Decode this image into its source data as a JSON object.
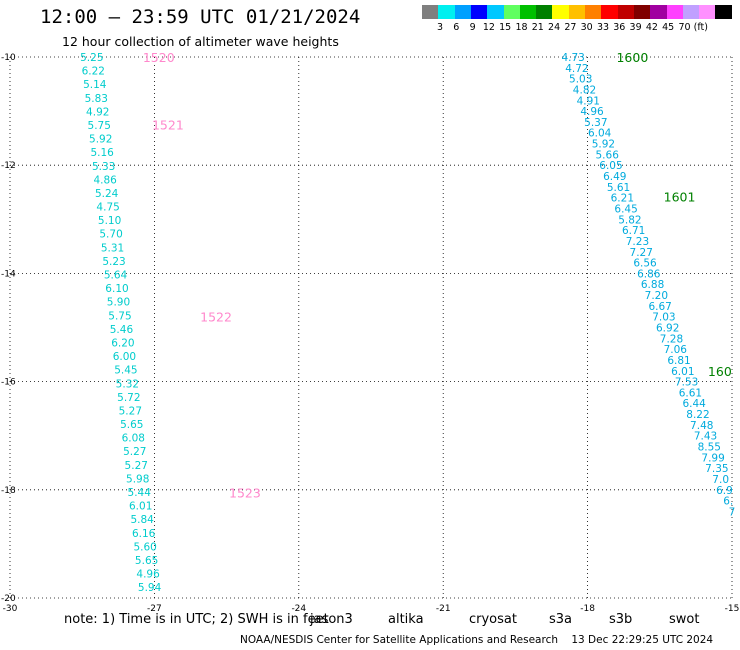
{
  "header": {
    "title": "12:00 – 23:59 UTC 01/21/2024",
    "subtitle": "12 hour collection of altimeter wave heights"
  },
  "legend": {
    "unit": "(ft)",
    "colors": [
      "#7f7f7f",
      "#00f0f0",
      "#00a0ff",
      "#0000ff",
      "#00c8ff",
      "#60ff60",
      "#00c000",
      "#008000",
      "#ffff00",
      "#ffc000",
      "#ff8000",
      "#ff0000",
      "#c00000",
      "#800000",
      "#a000a0",
      "#ff40ff",
      "#c0a0ff",
      "#ff90ff",
      "#000000"
    ],
    "labels": [
      "3",
      "6",
      "9",
      "12",
      "15",
      "18",
      "21",
      "24",
      "27",
      "30",
      "33",
      "36",
      "39",
      "42",
      "45",
      "70"
    ]
  },
  "axes": {
    "x_ticks": [
      "-30",
      "-27",
      "-24",
      "-21",
      "-18",
      "-15"
    ],
    "y_ticks": [
      "-10",
      "-12",
      "-14",
      "-16",
      "-18",
      "-20"
    ]
  },
  "track_left": {
    "color": "#00cccc",
    "lon_start": -28.3,
    "lat_start": -10.0,
    "lon_end": -27.1,
    "lat_end": -19.8,
    "values": [
      "5.25",
      "6.22",
      "5.14",
      "5.83",
      "4.92",
      "5.75",
      "5.92",
      "5.16",
      "5.33",
      "4.86",
      "5.24",
      "4.75",
      "5.10",
      "5.70",
      "5.31",
      "5.23",
      "5.64",
      "6.10",
      "5.90",
      "5.75",
      "5.46",
      "6.20",
      "6.00",
      "5.45",
      "5.32",
      "5.72",
      "5.27",
      "5.65",
      "6.08",
      "5.27",
      "5.27",
      "5.98",
      "5.44",
      "6.01",
      "5.84",
      "6.16",
      "5.60",
      "5.65",
      "4.96",
      "5.94"
    ]
  },
  "track_right": {
    "color": "#00aadd",
    "lon_start": -18.3,
    "lat_start": -10.0,
    "lon_end": -15.0,
    "lat_end": -18.4,
    "values": [
      "4.73",
      "4.72",
      "5.03",
      "4.82",
      "4.91",
      "4.96",
      "5.37",
      "6.04",
      "5.92",
      "5.66",
      "6.05",
      "6.49",
      "5.61",
      "6.21",
      "6.45",
      "5.82",
      "6.71",
      "7.23",
      "7.27",
      "6.56",
      "6.86",
      "6.88",
      "7.20",
      "6.67",
      "7.03",
      "6.92",
      "7.28",
      "7.06",
      "6.81",
      "6.01",
      "7.53",
      "6.61",
      "6.44",
      "8.22",
      "7.48",
      "7.43",
      "8.55",
      "7.99",
      "7.35",
      "7.0",
      "6.9",
      "6.",
      "7"
    ]
  },
  "time_labels": [
    {
      "text": "1520",
      "color": "#ff88cc",
      "lon": -27.24,
      "lat": -10.0
    },
    {
      "text": "1521",
      "color": "#ff88cc",
      "lon": -27.05,
      "lat": -11.25
    },
    {
      "text": "1522",
      "color": "#ff88cc",
      "lon": -26.05,
      "lat": -14.8
    },
    {
      "text": "1523",
      "color": "#ff88cc",
      "lon": -25.45,
      "lat": -18.05
    },
    {
      "text": "1600",
      "color": "#008000",
      "lon": -17.4,
      "lat": -10.0
    },
    {
      "text": "1601",
      "color": "#008000",
      "lon": -16.42,
      "lat": -12.58
    },
    {
      "text": "160",
      "color": "#008000",
      "lon": -15.5,
      "lat": -15.8
    }
  ],
  "notes": {
    "prefix": "note:  1) Time is in UTC;  2) SWH is in feet",
    "satellites": [
      {
        "name": "jason3",
        "color": "#008000"
      },
      {
        "name": "altika",
        "color": "#ff8800"
      },
      {
        "name": "cryosat",
        "color": "#ff0000"
      },
      {
        "name": "s3a",
        "color": "#aa0000"
      },
      {
        "name": "s3b",
        "color": "#c0a0ff"
      },
      {
        "name": "swot",
        "color": "#ff88dd"
      }
    ]
  },
  "footer": {
    "credit": "NOAA/NESDIS Center for Satellite Applications and Research",
    "timestamp": "13 Dec 22:29:25 UTC 2024"
  }
}
